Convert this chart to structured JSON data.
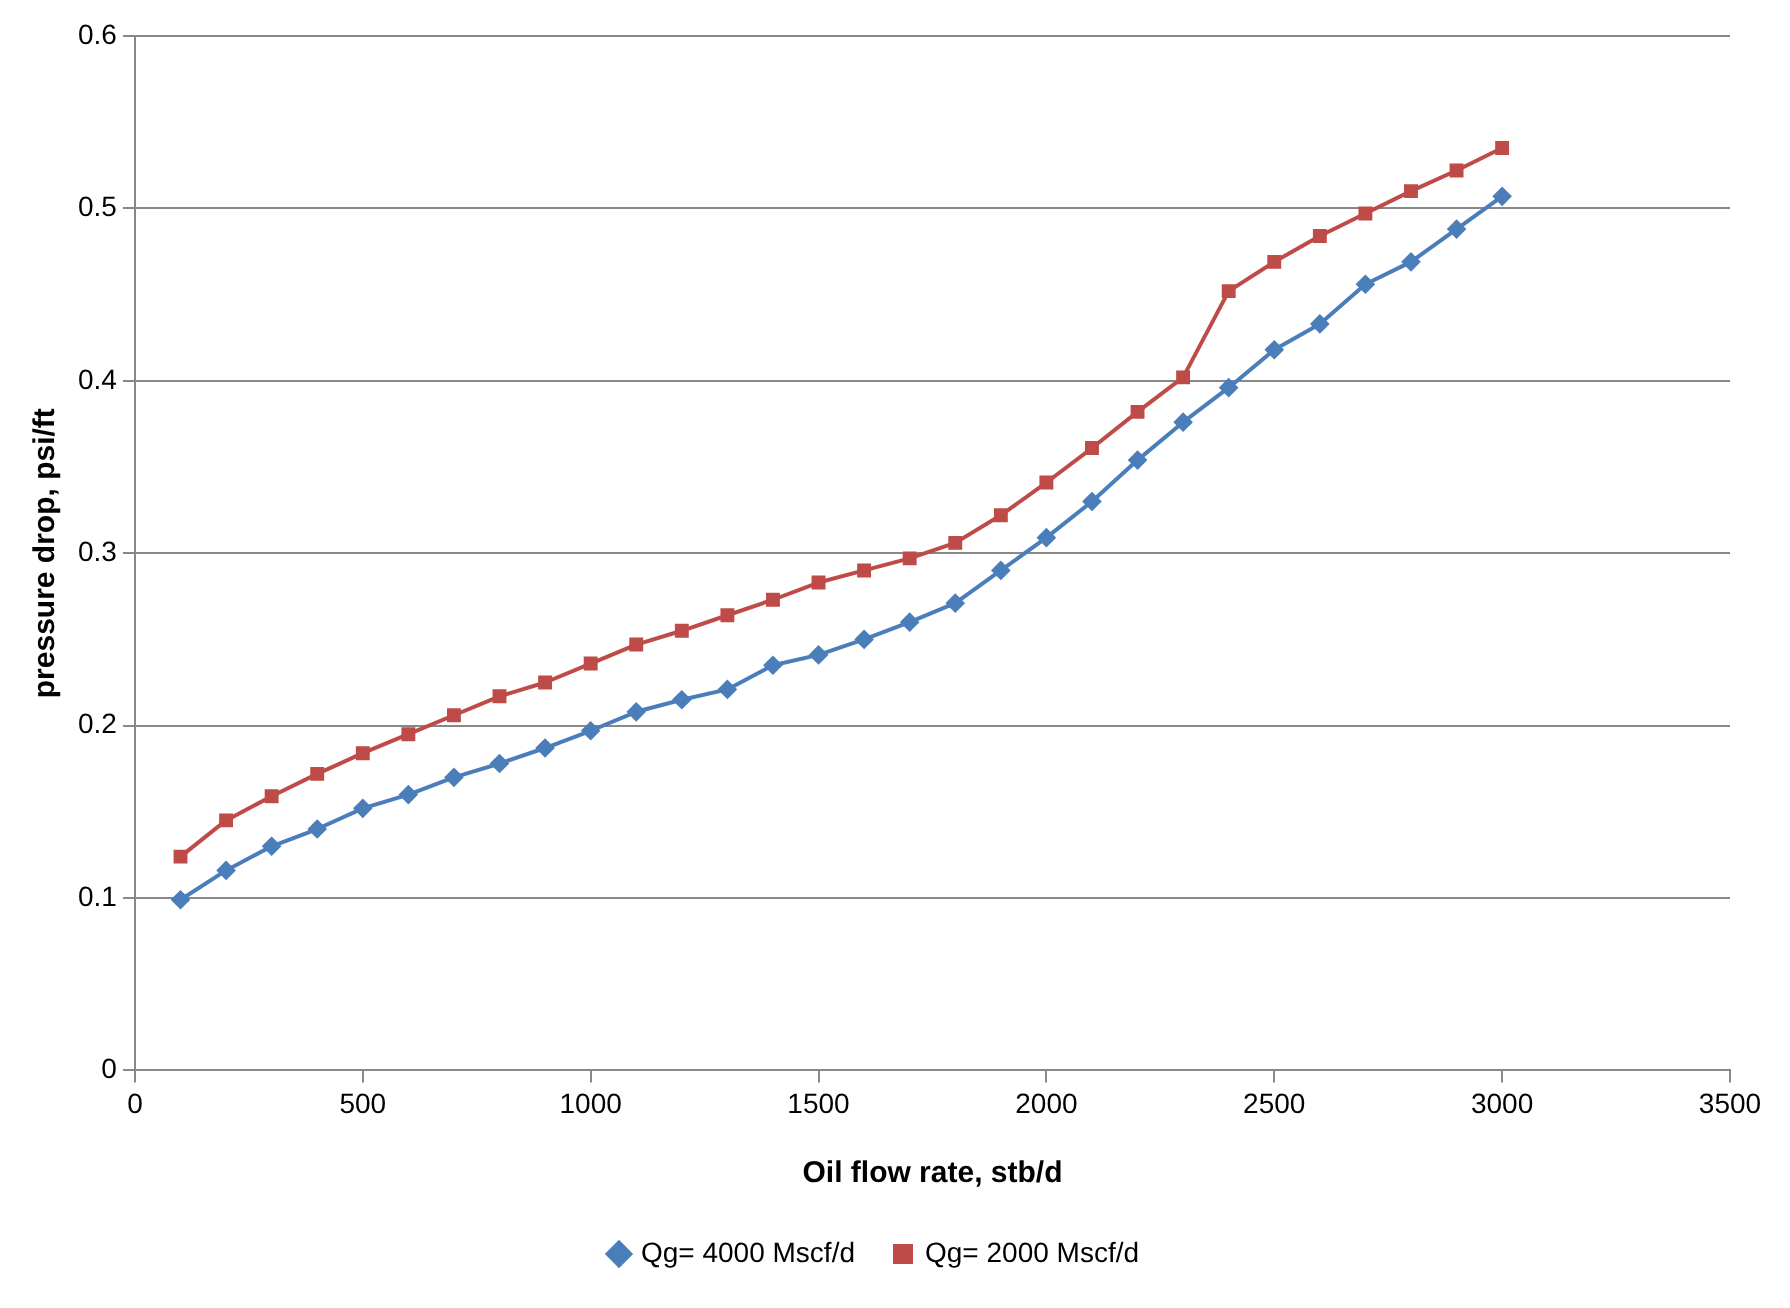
{
  "chart_data": {
    "type": "line",
    "xlabel": "Oil flow rate, stb/d",
    "ylabel": "pressure drop, psi/ft",
    "x": [
      100,
      200,
      300,
      400,
      500,
      600,
      700,
      800,
      900,
      1000,
      1100,
      1200,
      1300,
      1400,
      1500,
      1600,
      1700,
      1800,
      1900,
      2000,
      2100,
      2200,
      2300,
      2400,
      2500,
      2600,
      2700,
      2800,
      2900,
      3000
    ],
    "series": [
      {
        "name": "Qg= 4000 Mscf/d",
        "color": "#4a7ebb",
        "marker": "diamond",
        "values": [
          0.099,
          0.116,
          0.13,
          0.14,
          0.152,
          0.16,
          0.17,
          0.178,
          0.187,
          0.197,
          0.208,
          0.215,
          0.221,
          0.235,
          0.241,
          0.25,
          0.26,
          0.271,
          0.29,
          0.309,
          0.33,
          0.354,
          0.376,
          0.396,
          0.418,
          0.433,
          0.456,
          0.469,
          0.488,
          0.507
        ]
      },
      {
        "name": "Qg= 2000 Mscf/d",
        "color": "#be4b48",
        "marker": "square",
        "values": [
          0.124,
          0.145,
          0.159,
          0.172,
          0.184,
          0.195,
          0.206,
          0.217,
          0.225,
          0.236,
          0.247,
          0.255,
          0.264,
          0.273,
          0.283,
          0.29,
          0.297,
          0.306,
          0.322,
          0.341,
          0.361,
          0.382,
          0.402,
          0.452,
          0.469,
          0.484,
          0.497,
          0.51,
          0.522,
          0.535
        ]
      }
    ],
    "xlim": [
      0,
      3500
    ],
    "xticks": [
      0,
      500,
      1000,
      1500,
      2000,
      2500,
      3000,
      3500
    ],
    "ylim": [
      0,
      0.6
    ],
    "yticks": [
      0,
      0.1,
      0.2,
      0.3,
      0.4,
      0.5,
      0.6
    ],
    "grid": "y",
    "legend": "bottom",
    "line_style": "solid"
  }
}
